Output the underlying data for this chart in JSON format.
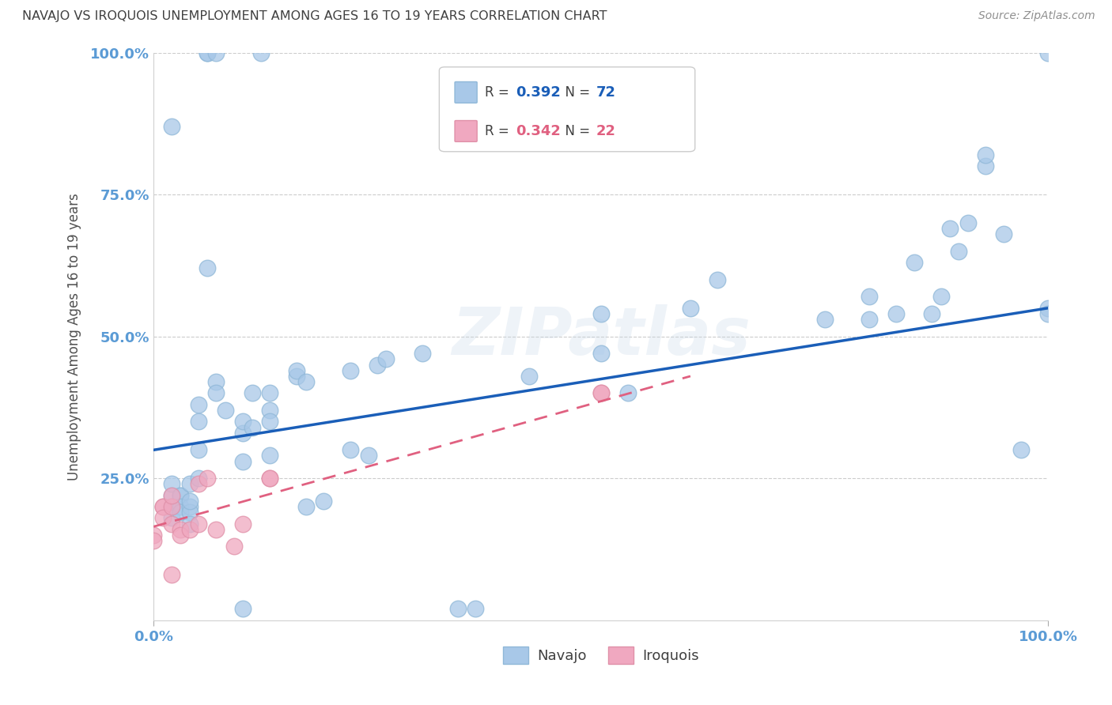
{
  "title": "NAVAJO VS IROQUOIS UNEMPLOYMENT AMONG AGES 16 TO 19 YEARS CORRELATION CHART",
  "source": "Source: ZipAtlas.com",
  "ylabel": "Unemployment Among Ages 16 to 19 years",
  "xlim": [
    0.0,
    1.0
  ],
  "ylim": [
    0.0,
    1.0
  ],
  "navajo_R": "0.392",
  "navajo_N": "72",
  "iroquois_R": "0.342",
  "iroquois_N": "22",
  "navajo_color": "#a8c8e8",
  "iroquois_color": "#f0a8c0",
  "navajo_line_color": "#1a5eb8",
  "iroquois_line_color": "#e06080",
  "background_color": "#ffffff",
  "watermark": "ZIPatlas",
  "title_color": "#404040",
  "axis_label_color": "#505050",
  "tick_label_color": "#5b9bd5",
  "source_color": "#909090",
  "navajo_x": [
    0.02,
    0.02,
    0.02,
    0.02,
    0.03,
    0.03,
    0.03,
    0.03,
    0.04,
    0.04,
    0.04,
    0.04,
    0.04,
    0.05,
    0.05,
    0.05,
    0.05,
    0.06,
    0.06,
    0.07,
    0.07,
    0.07,
    0.08,
    0.1,
    0.1,
    0.1,
    0.1,
    0.11,
    0.11,
    0.12,
    0.13,
    0.13,
    0.13,
    0.13,
    0.16,
    0.16,
    0.17,
    0.17,
    0.19,
    0.22,
    0.22,
    0.24,
    0.25,
    0.26,
    0.3,
    0.34,
    0.36,
    0.42,
    0.5,
    0.5,
    0.53,
    0.6,
    0.63,
    0.75,
    0.8,
    0.8,
    0.83,
    0.85,
    0.87,
    0.88,
    0.89,
    0.9,
    0.91,
    0.93,
    0.93,
    0.95,
    0.97,
    1.0,
    1.0,
    1.0,
    0.02,
    0.06
  ],
  "navajo_y": [
    0.22,
    0.24,
    0.2,
    0.18,
    0.22,
    0.22,
    0.2,
    0.19,
    0.2,
    0.24,
    0.19,
    0.21,
    0.17,
    0.25,
    0.3,
    0.35,
    0.38,
    1.0,
    1.0,
    0.42,
    0.4,
    1.0,
    0.37,
    0.02,
    0.28,
    0.33,
    0.35,
    0.4,
    0.34,
    1.0,
    0.4,
    0.37,
    0.35,
    0.29,
    0.43,
    0.44,
    0.42,
    0.2,
    0.21,
    0.3,
    0.44,
    0.29,
    0.45,
    0.46,
    0.47,
    0.02,
    0.02,
    0.43,
    0.47,
    0.54,
    0.4,
    0.55,
    0.6,
    0.53,
    0.53,
    0.57,
    0.54,
    0.63,
    0.54,
    0.57,
    0.69,
    0.65,
    0.7,
    0.8,
    0.82,
    0.68,
    0.3,
    1.0,
    0.55,
    0.54,
    0.87,
    0.62
  ],
  "iroquois_x": [
    0.0,
    0.0,
    0.01,
    0.01,
    0.01,
    0.02,
    0.02,
    0.02,
    0.02,
    0.03,
    0.03,
    0.04,
    0.05,
    0.05,
    0.06,
    0.07,
    0.09,
    0.1,
    0.13,
    0.13,
    0.5,
    0.5
  ],
  "iroquois_y": [
    0.15,
    0.14,
    0.2,
    0.2,
    0.18,
    0.17,
    0.2,
    0.22,
    0.08,
    0.16,
    0.15,
    0.16,
    0.24,
    0.17,
    0.25,
    0.16,
    0.13,
    0.17,
    0.25,
    0.25,
    0.4,
    0.4
  ],
  "navajo_line_x0": 0.0,
  "navajo_line_y0": 0.3,
  "navajo_line_x1": 1.0,
  "navajo_line_y1": 0.55,
  "iroquois_line_x0": 0.0,
  "iroquois_line_y0": 0.165,
  "iroquois_line_x1": 0.6,
  "iroquois_line_y1": 0.43
}
